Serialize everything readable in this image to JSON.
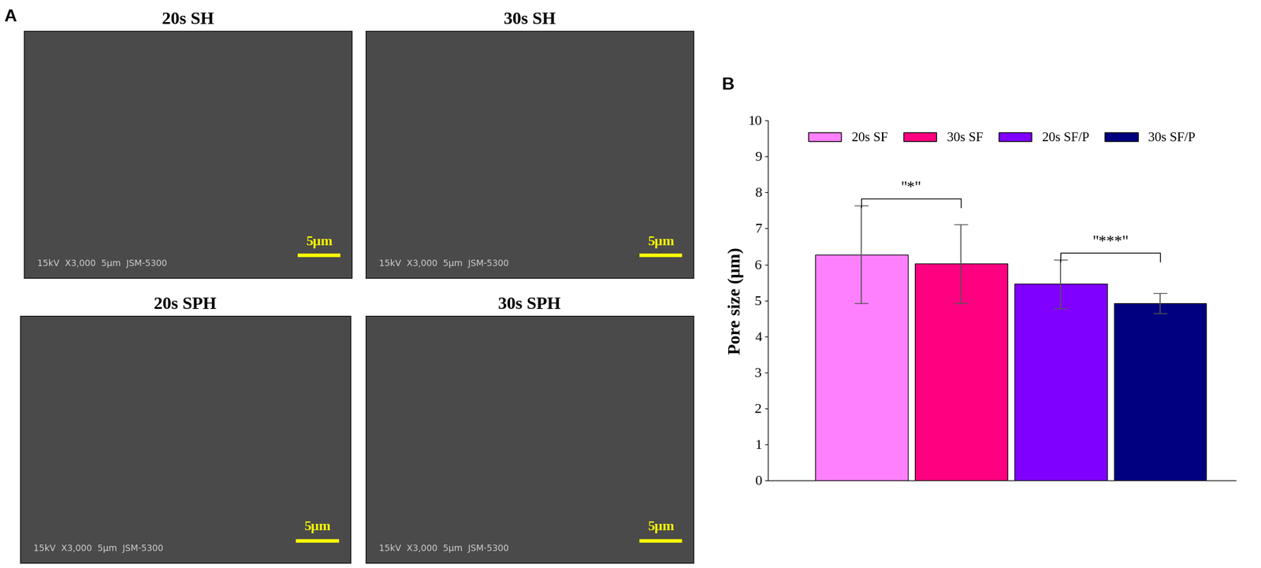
{
  "panel_labels": [
    "A",
    "B"
  ],
  "images": [
    {
      "title": "20s SH",
      "scale_bar": "5μm",
      "footer": "15kV  X3,000  5μm  JSM-5300"
    },
    {
      "title": "30s SH",
      "scale_bar": "5μm",
      "footer": "15kV  X3,000  5μm  JSM-5300"
    },
    {
      "title": "20s SPH",
      "scale_bar": "5μm",
      "footer": "15kV  X3,000  5μm  JSM-5300"
    },
    {
      "title": "30s SPH",
      "scale_bar": "5μm",
      "footer": "15kV  X3,000  5μm  JSM-5300"
    }
  ],
  "chart_data": {
    "type": "bar",
    "y_label": "Pore size (μm)",
    "series": [
      {
        "name": "20s SF",
        "color": "#ff80ff",
        "values": [
          6.28
        ],
        "errors": [
          1.35
        ]
      },
      {
        "name": "30s SF",
        "color": "#ff0080",
        "values": [
          6.02
        ],
        "errors": [
          1.1
        ]
      },
      {
        "name": "20s SF/P",
        "color": "#8000ff",
        "values": [
          5.46
        ],
        "errors": [
          0.67
        ]
      },
      {
        "name": "30s SF/P",
        "color": "#000080",
        "values": [
          4.93
        ],
        "errors": [
          0.28
        ]
      }
    ],
    "significance": [
      {
        "between": [
          0,
          1
        ],
        "label": "\"*\""
      },
      {
        "between": [
          2,
          3
        ],
        "label": "\"***\""
      }
    ],
    "ylim": [
      0,
      10
    ],
    "yticks": [
      0,
      1,
      2,
      3,
      4,
      5,
      6,
      7,
      8,
      9,
      10
    ],
    "legend": "upper center",
    "tick_labels": "y",
    "grid": false
  }
}
